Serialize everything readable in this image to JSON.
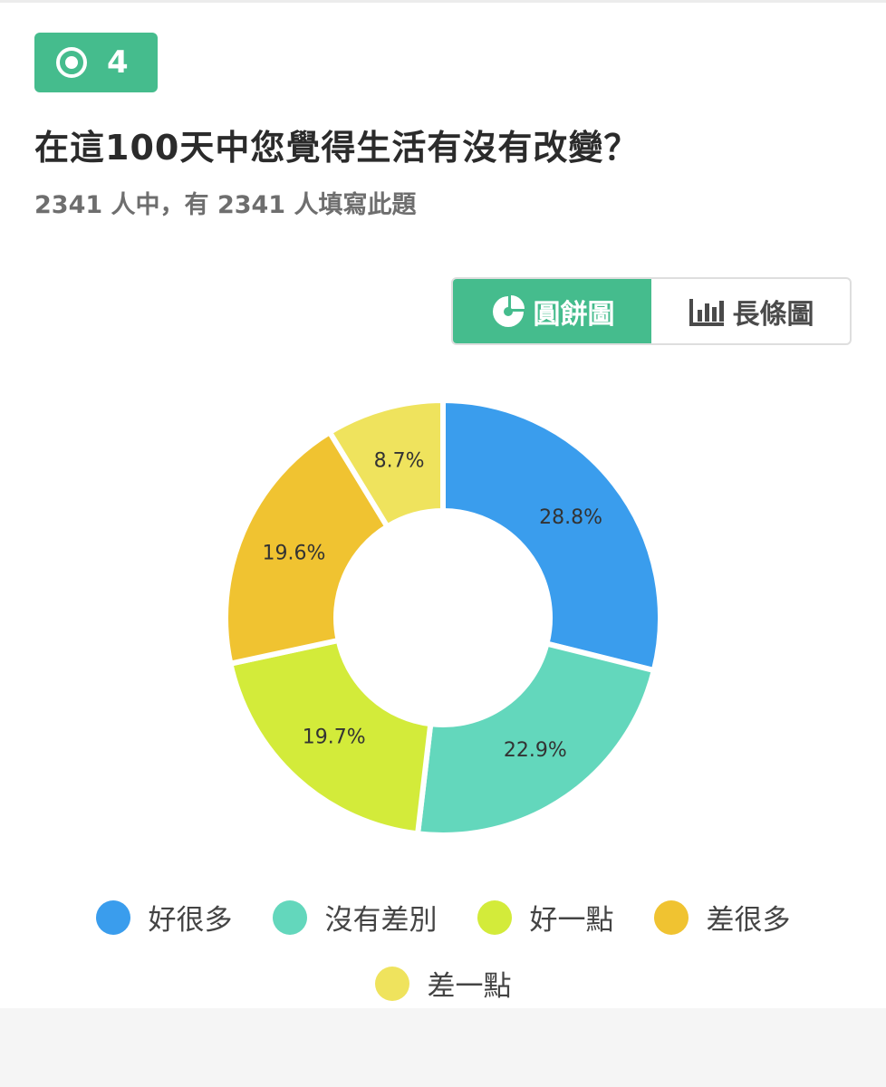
{
  "question": {
    "number": "4",
    "title": "在這100天中您覺得生活有沒有改變？",
    "subtitle": "2341 人中，有 2341 人填寫此題"
  },
  "view_toggle": {
    "pie_label": "圓餅圖",
    "bar_label": "長條圖",
    "active": "pie"
  },
  "colors": {
    "accent": "#45bc8d"
  },
  "chart_data": {
    "type": "pie",
    "donut": true,
    "categories": [
      "好很多",
      "沒有差別",
      "好一點",
      "差很多",
      "差一點"
    ],
    "values": [
      28.8,
      22.9,
      19.7,
      19.6,
      8.7
    ],
    "labels": [
      "28.8%",
      "22.9%",
      "19.7%",
      "19.6%",
      "8.7%"
    ],
    "colors": [
      "#3a9ded",
      "#63d7bc",
      "#d3eb3a",
      "#f0c331",
      "#efe35d"
    ],
    "legend_position": "bottom"
  }
}
